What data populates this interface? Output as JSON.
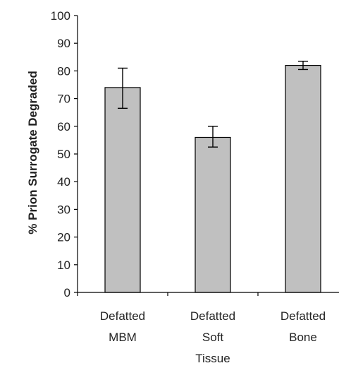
{
  "chart_data": {
    "type": "bar",
    "title": "",
    "xlabel": "",
    "ylabel": "% Prion Surrogate Degraded",
    "ylim": [
      0,
      100
    ],
    "yticks": [
      0,
      10,
      20,
      30,
      40,
      50,
      60,
      70,
      80,
      90,
      100
    ],
    "grid": false,
    "categories": [
      [
        "Defatted",
        "MBM"
      ],
      [
        "Defatted",
        "Soft",
        "Tissue"
      ],
      [
        "Defatted",
        "Bone"
      ]
    ],
    "values": [
      74,
      56,
      82
    ],
    "error_bars": [
      [
        66.5,
        81
      ],
      [
        52.5,
        60
      ],
      [
        80.5,
        83.5
      ]
    ],
    "colors": {
      "bar_fill": "#c0c0c0",
      "bar_stroke": "#000000",
      "axis": "#000000"
    }
  }
}
